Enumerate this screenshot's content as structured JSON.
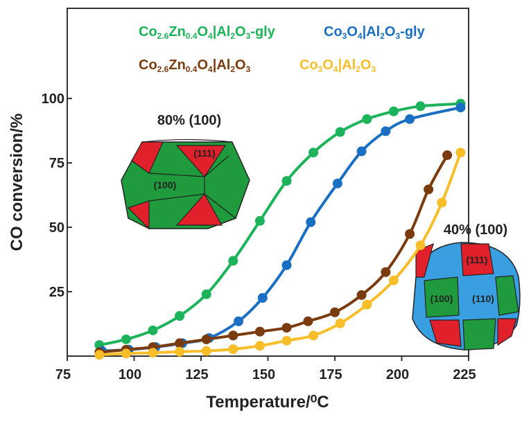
{
  "chart_data": {
    "type": "line",
    "xlabel": "Temperature/⁰C",
    "ylabel": "CO conversion/%",
    "xlim": [
      75,
      225
    ],
    "ylim": [
      0,
      135
    ],
    "xticks": [
      75,
      100,
      125,
      150,
      175,
      200,
      225
    ],
    "yticks": [
      25,
      50,
      75,
      100
    ],
    "markers": true,
    "series": [
      {
        "name": "Co2.6Zn0.4O4|Al2O3-gly",
        "color": "#1db35a",
        "x": [
          87,
          97,
          107,
          117,
          127,
          137,
          147,
          157,
          167,
          177,
          187,
          197,
          207,
          222
        ],
        "values": [
          4.3,
          6.5,
          10,
          15.6,
          24,
          37,
          52.5,
          68,
          79,
          87,
          92,
          95,
          97,
          98
        ]
      },
      {
        "name": "Co3O4|Al2O3-gly",
        "color": "#1a6fc2",
        "x": [
          88,
          98,
          108,
          118,
          128,
          139,
          148,
          157,
          166,
          176,
          185,
          194,
          203,
          222
        ],
        "values": [
          2,
          2.5,
          3.5,
          5,
          7,
          13.5,
          22.6,
          35.3,
          52,
          67,
          79.5,
          87.3,
          92,
          96.5
        ]
      },
      {
        "name": "Co2.6Zn0.4O4|Al2O3",
        "color": "#7a3b0f",
        "x": [
          87,
          97,
          107,
          117,
          127,
          137,
          147,
          157,
          165,
          175,
          185,
          194,
          203,
          210,
          217
        ],
        "values": [
          1.5,
          2.5,
          3.5,
          5,
          6.5,
          8,
          9.5,
          11,
          13.5,
          17,
          23.7,
          32.6,
          47.4,
          64.7,
          78
        ]
      },
      {
        "name": "Co3O4|Al2O3",
        "color": "#f7be2a",
        "x": [
          87,
          97,
          107,
          117,
          127,
          137,
          147,
          157,
          167,
          177,
          187,
          197,
          207,
          215,
          222
        ],
        "values": [
          0.5,
          1,
          1.3,
          1.7,
          2,
          2.7,
          4,
          6,
          8,
          12.7,
          20,
          29.4,
          43,
          59.6,
          79
        ]
      }
    ],
    "insets": [
      {
        "title": "80% (100)",
        "labels": [
          "(111)",
          "(100)"
        ]
      },
      {
        "title": "40% (100)",
        "labels": [
          "(111)",
          "(100)",
          "(110)"
        ]
      }
    ]
  }
}
